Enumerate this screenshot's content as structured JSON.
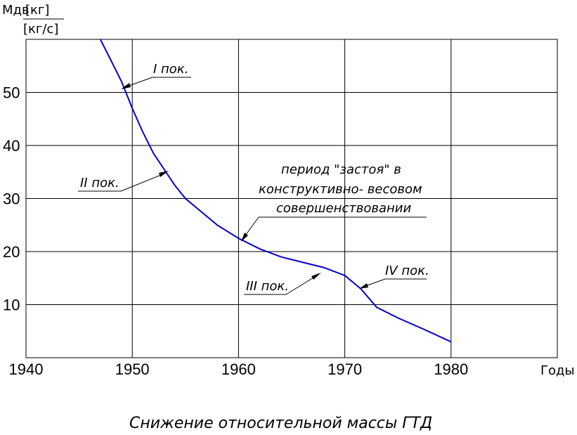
{
  "chart_data": {
    "type": "line",
    "title": "Снижение относительной массы ГТД",
    "xlabel": "Годы",
    "ylabel": "Mдв [кг]/[кг/с]",
    "ylabel_symbol": "Mдв",
    "ylabel_num": "[кг]",
    "ylabel_den": "[кг/с]",
    "xlim": [
      1940,
      1990
    ],
    "ylim": [
      0,
      60
    ],
    "x_ticks": [
      1940,
      1950,
      1960,
      1970,
      1980
    ],
    "y_ticks": [
      10,
      20,
      30,
      40,
      50
    ],
    "grid": true,
    "series": [
      {
        "color": "#0000cc",
        "x": [
          1947.0,
          1948.0,
          1949.0,
          1950.0,
          1951.0,
          1952.0,
          1953.0,
          1954.0,
          1955.0,
          1956.5,
          1958.0,
          1960.0,
          1962.0,
          1964.0,
          1966.0,
          1968.0,
          1970.0,
          1971.5,
          1973.0,
          1975.0,
          1977.5,
          1980.0
        ],
        "values": [
          60.0,
          56.0,
          52.0,
          47.0,
          42.5,
          38.5,
          35.5,
          32.5,
          30.0,
          27.5,
          25.0,
          22.5,
          20.5,
          19.0,
          18.0,
          17.0,
          15.5,
          13.0,
          9.5,
          7.5,
          5.3,
          3.0
        ]
      }
    ],
    "annotations": [
      {
        "text": "I пок.",
        "x": 1949.0,
        "y": 51.0
      },
      {
        "text": "II пок.",
        "x": 1953.5,
        "y": 35.0
      },
      {
        "text": "период \"застоя\" в",
        "x": 1960.3,
        "y": 22.0
      },
      {
        "text": "конструктивно- весовом",
        "x": 1960.3,
        "y": 22.0
      },
      {
        "text": "совершенствовании",
        "x": 1960.3,
        "y": 22.0
      },
      {
        "text": "III пок.",
        "x": 1968.0,
        "y": 17.0
      },
      {
        "text": "IV пок.",
        "x": 1971.3,
        "y": 13.0
      }
    ]
  }
}
